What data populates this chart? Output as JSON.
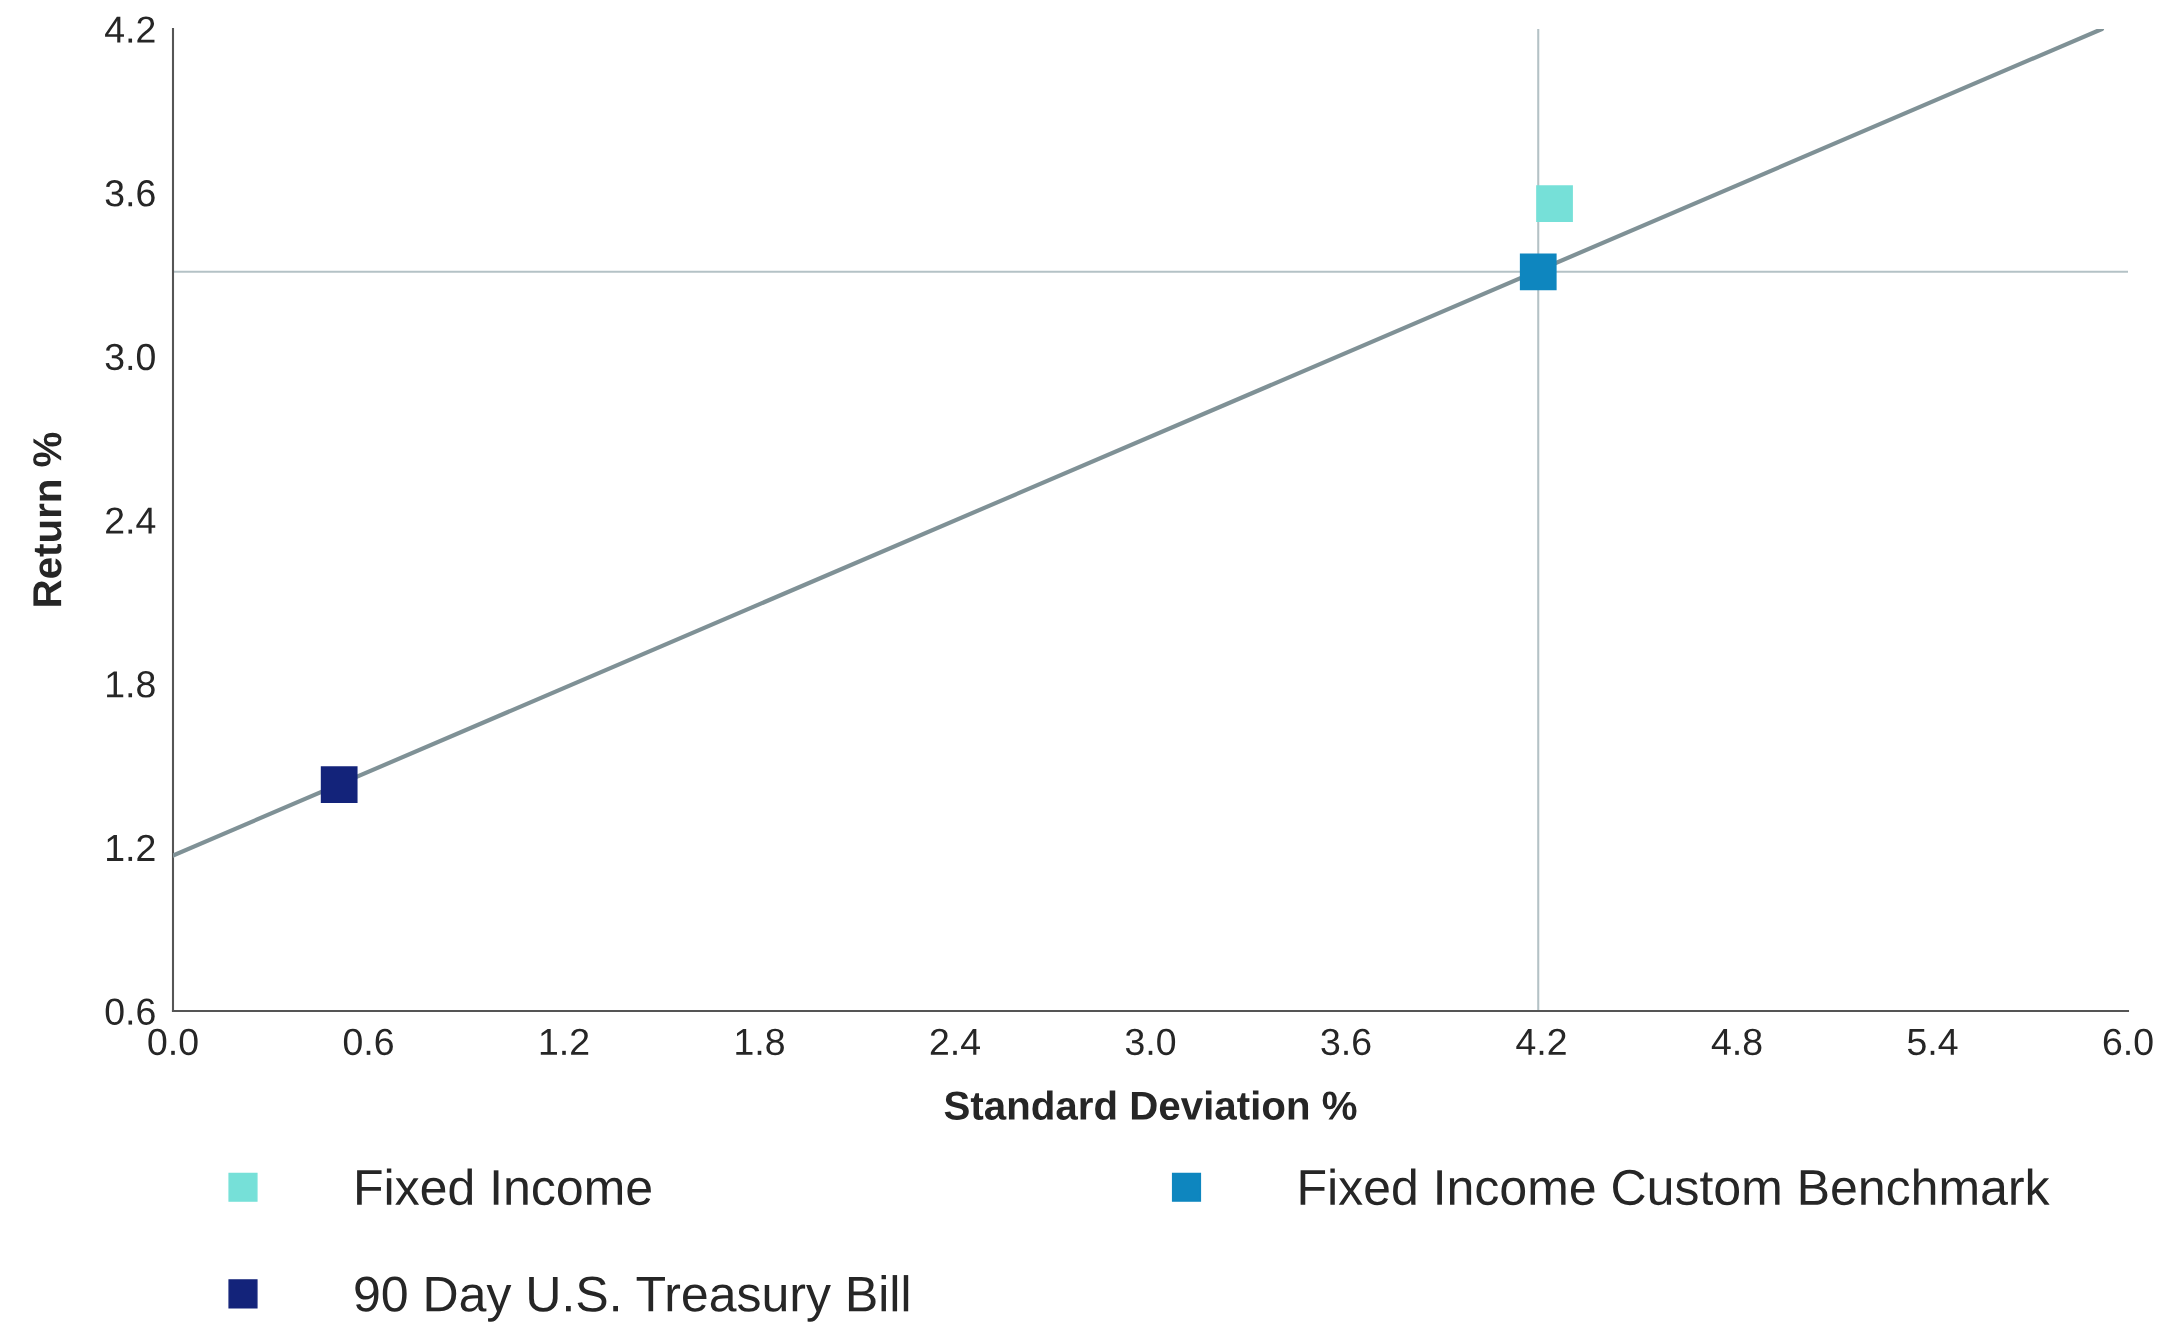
{
  "chart_data": {
    "type": "scatter",
    "xlabel": "Standard Deviation %",
    "ylabel": "Return %",
    "xlim": [
      0.0,
      6.0
    ],
    "xticks": [
      {
        "value": 0,
        "label": "0.0"
      },
      0.6,
      1.2,
      1.8,
      2.4,
      {
        "value": 3,
        "label": "3.0"
      },
      3.6,
      4.2,
      4.8,
      5.4,
      {
        "value": 6,
        "label": "6.0"
      }
    ],
    "ylim": [
      0.6,
      4.2
    ],
    "yticks": [
      0.6,
      1.2,
      1.8,
      2.4,
      {
        "value": 3,
        "label": "3.0"
      },
      3.6,
      4.2
    ],
    "grid": false,
    "legend": "bottom",
    "series": [
      {
        "name": "Fixed Income",
        "color": "#76e0d8",
        "marker": "square",
        "x": [
          4.24
        ],
        "values": [
          3.56
        ]
      },
      {
        "name": "Fixed Income Custom Benchmark",
        "color": "#0e86bf",
        "marker": "square",
        "x": [
          4.19
        ],
        "values": [
          3.31
        ]
      },
      {
        "name": "90 Day U.S. Treasury Bill",
        "color": "#13237a",
        "marker": "square",
        "x": [
          0.51
        ],
        "values": [
          1.43
        ]
      },
      {
        "type": "line",
        "color": "#7f9196",
        "x": [
          0.0,
          5.92
        ],
        "values": [
          1.17,
          4.2
        ]
      }
    ],
    "ref_lines": [
      {
        "axis": "x",
        "value": 4.19,
        "color": "#b4c2c6"
      },
      {
        "axis": "y",
        "value": 3.31,
        "color": "#b4c2c6"
      }
    ]
  }
}
